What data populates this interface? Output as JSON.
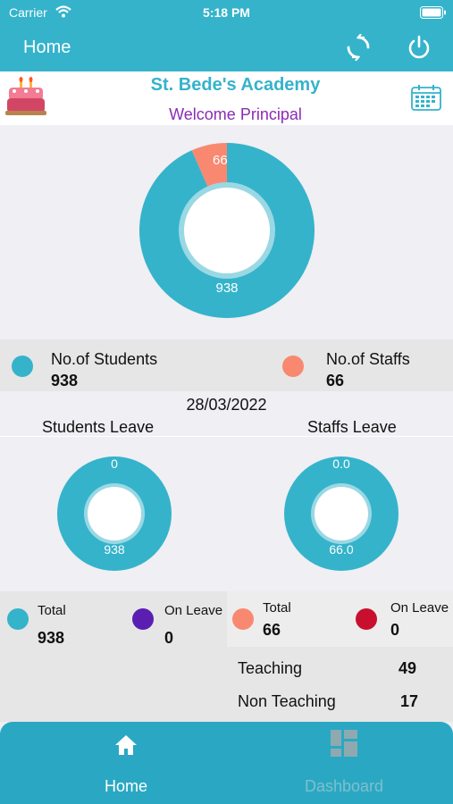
{
  "status_bar": {
    "carrier": "Carrier",
    "time": "5:18 PM"
  },
  "nav": {
    "title": "Home",
    "refresh_icon": "refresh-icon",
    "power_icon": "power-icon"
  },
  "header": {
    "school_name": "St. Bede's Academy",
    "welcome": "Welcome Principal",
    "cake_icon": "cake-icon",
    "calendar_icon": "calendar-icon"
  },
  "colors": {
    "teal": "#35b3cb",
    "salmon": "#f98870",
    "purple": "#5a1fb2",
    "crimson": "#c8102e"
  },
  "main_chart": {
    "students_label": "938",
    "staffs_label": "66"
  },
  "summary": {
    "students_label": "No.of Students",
    "students_value": "938",
    "staffs_label": "No.of Staffs",
    "staffs_value": "66"
  },
  "date": "28/03/2022",
  "leave": {
    "students_title": "Students Leave",
    "staffs_title": "Staffs Leave",
    "students_chart": {
      "on_leave_label": "0",
      "total_label": "938"
    },
    "staffs_chart": {
      "on_leave_label": "0.0",
      "total_label": "66.0"
    },
    "students_total_label": "Total",
    "students_total_value": "938",
    "students_onleave_label": "On Leave",
    "students_onleave_value": "0",
    "staffs_total_label": "Total",
    "staffs_total_value": "66",
    "staffs_onleave_label": "On Leave",
    "staffs_onleave_value": "0",
    "teaching_label": "Teaching",
    "teaching_value": "49",
    "nonteaching_label": "Non Teaching",
    "nonteaching_value": "17"
  },
  "chart_data": [
    {
      "type": "pie",
      "categories": [
        "No.of Students",
        "No.of Staffs"
      ],
      "values": [
        938,
        66
      ]
    },
    {
      "type": "pie",
      "title": "Students Leave",
      "categories": [
        "Total",
        "On Leave"
      ],
      "values": [
        938,
        0
      ]
    },
    {
      "type": "pie",
      "title": "Staffs Leave",
      "categories": [
        "Total",
        "On Leave"
      ],
      "values": [
        66,
        0
      ]
    }
  ],
  "tabbar": {
    "home_label": "Home",
    "dashboard_label": "Dashboard",
    "home_icon": "home-icon",
    "dashboard_icon": "dashboard-icon"
  }
}
